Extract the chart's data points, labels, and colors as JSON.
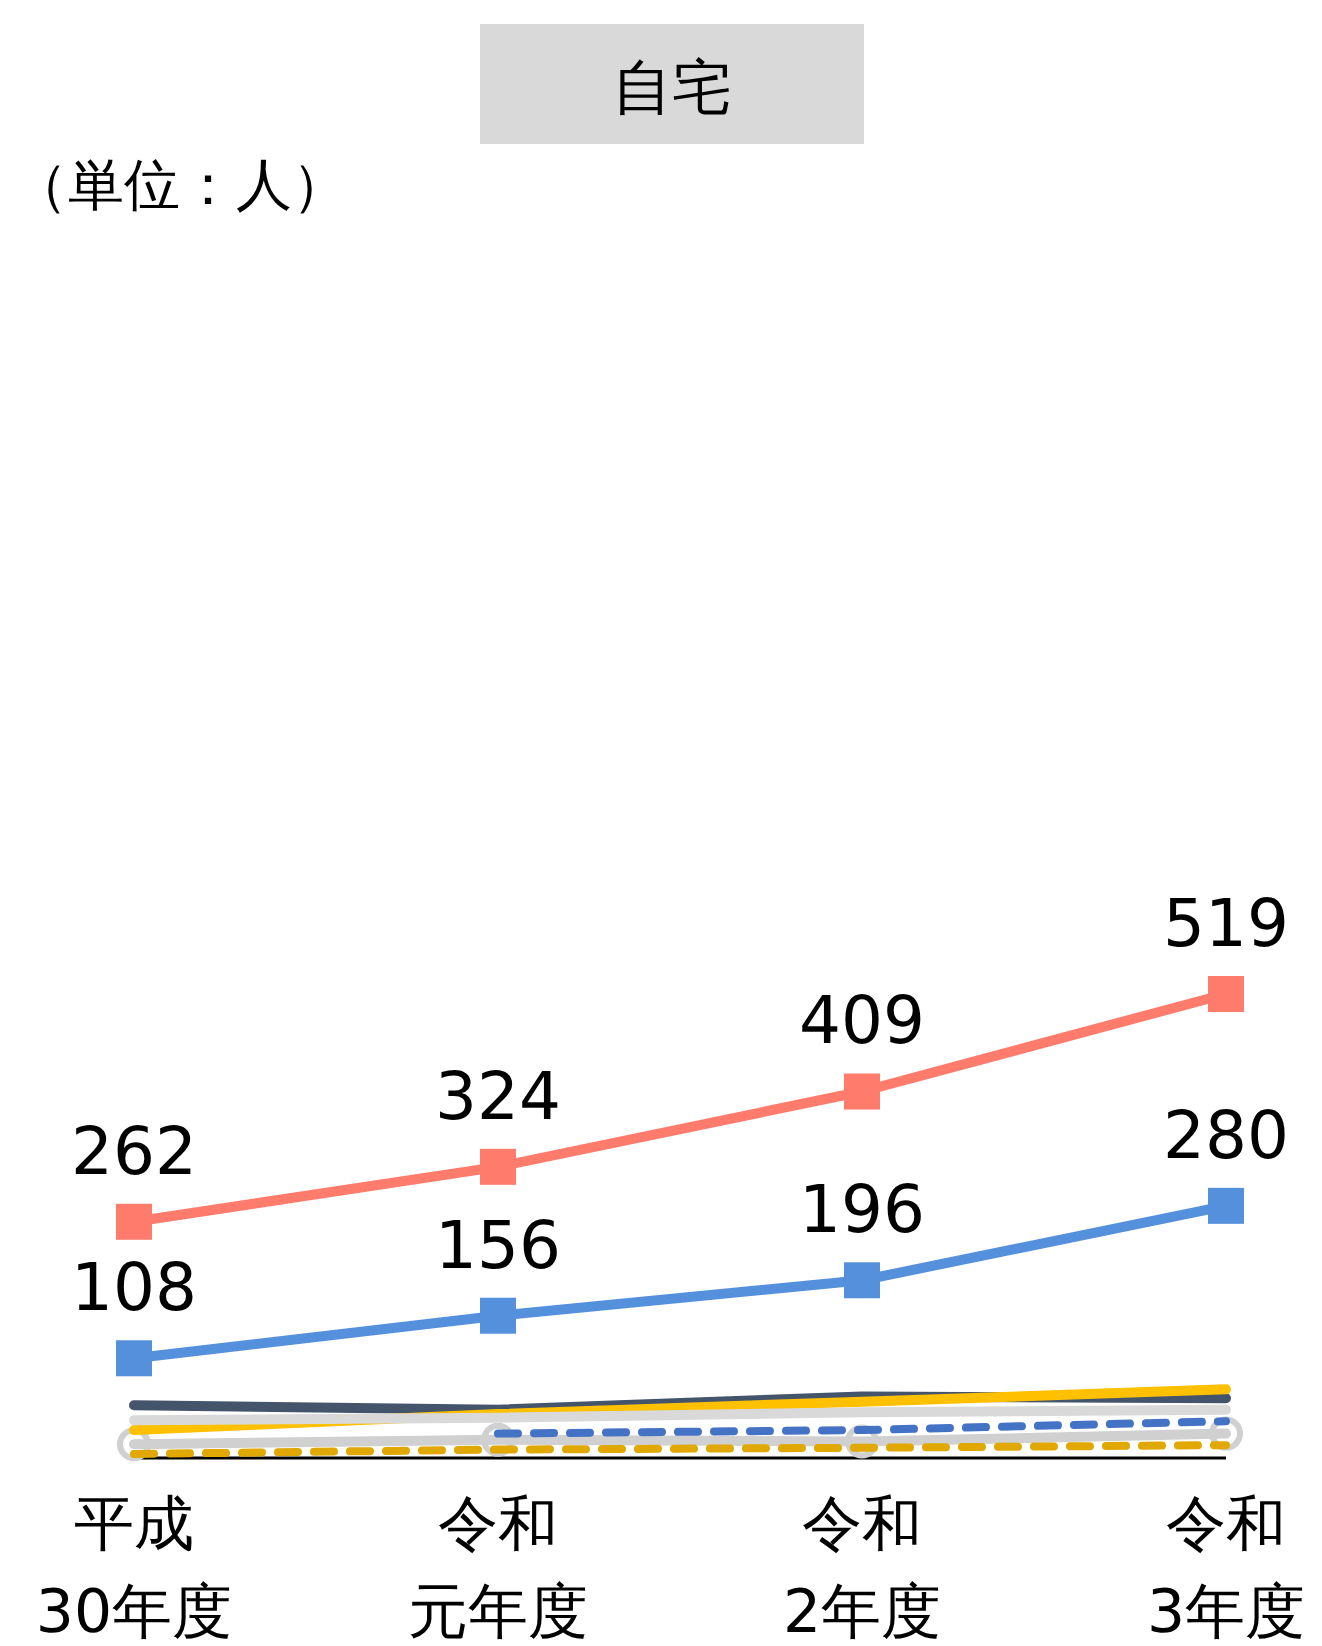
{
  "chart_data": {
    "type": "line",
    "title": "自宅",
    "annotations": [
      "（単位：人）"
    ],
    "categories": [
      "平成30年度",
      "令和元年度",
      "令和2年度",
      "令和3年度"
    ],
    "tick_labels": "x",
    "line_style": "solid",
    "series": [
      {
        "color": "#44546a",
        "values": [
          55,
          50,
          65,
          63
        ],
        "marker": "none"
      },
      {
        "color": "#ffc000",
        "values": [
          27,
          45,
          59,
          73
        ],
        "marker": "none"
      },
      {
        "color": "#d9d9d9",
        "values": [
          38,
          41,
          47,
          50
        ],
        "marker": "none"
      },
      {
        "color": "#4472c4",
        "values": [
          null,
          23,
          27,
          37
        ],
        "marker": "none",
        "line_style": "dashed"
      },
      {
        "color": "#e0a800",
        "values": [
          0,
          5,
          7,
          10
        ],
        "marker": "none",
        "line_style": "dashed"
      },
      {
        "color": "#d0d0d0",
        "values": [
          11,
          16,
          14,
          23
        ],
        "marker": "circle"
      },
      {
        "color": "#ff7b6b",
        "values": [
          262,
          324,
          409,
          519
        ],
        "marker": "square",
        "value_labels": [
          "262",
          "324",
          "409",
          "519"
        ]
      },
      {
        "color": "#5590dd",
        "values": [
          108,
          156,
          196,
          280
        ],
        "marker": "square",
        "value_labels": [
          "108",
          "156",
          "196",
          "280"
        ]
      }
    ]
  }
}
